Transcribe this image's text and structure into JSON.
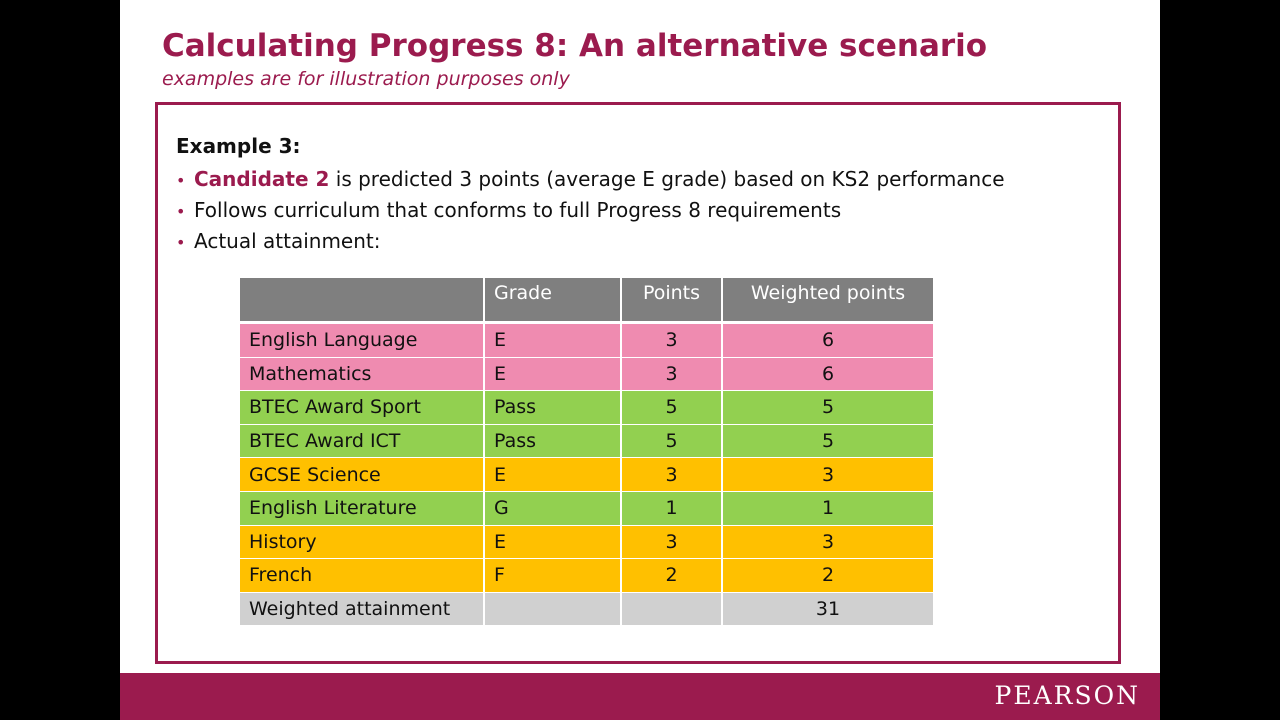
{
  "title": "Calculating Progress 8: An alternative scenario",
  "subtitle": "examples are for illustration purposes only",
  "example_heading": "Example 3:",
  "bullets": [
    {
      "bold": "Candidate 2",
      "text": " is predicted 3 points (average E grade) based on KS2 performance"
    },
    {
      "bold": "",
      "text": "Follows curriculum that conforms to full Progress 8 requirements"
    },
    {
      "bold": "",
      "text": "Actual attainment:"
    }
  ],
  "bullet_symbol": "•",
  "table": {
    "headers": [
      "",
      "Grade",
      "Points",
      "Weighted points"
    ],
    "rows": [
      {
        "subject": "English Language",
        "grade": "E",
        "points": "3",
        "weighted": "6",
        "color": "#ef8bb0"
      },
      {
        "subject": "Mathematics",
        "grade": "E",
        "points": "3",
        "weighted": "6",
        "color": "#ef8bb0"
      },
      {
        "subject": "BTEC Award Sport",
        "grade": "Pass",
        "points": "5",
        "weighted": "5",
        "color": "#92d050"
      },
      {
        "subject": "BTEC Award ICT",
        "grade": "Pass",
        "points": "5",
        "weighted": "5",
        "color": "#92d050"
      },
      {
        "subject": "GCSE Science",
        "grade": "E",
        "points": "3",
        "weighted": "3",
        "color": "#ffc000"
      },
      {
        "subject": "English Literature",
        "grade": "G",
        "points": "1",
        "weighted": "1",
        "color": "#92d050"
      },
      {
        "subject": "History",
        "grade": "E",
        "points": "3",
        "weighted": "3",
        "color": "#ffc000"
      },
      {
        "subject": "French",
        "grade": "F",
        "points": "2",
        "weighted": "2",
        "color": "#ffc000"
      }
    ],
    "total": {
      "label": "Weighted attainment",
      "grade": "",
      "points": "",
      "weighted": "31",
      "color": "#d0d0d0"
    }
  },
  "footer": {
    "logo": "PEARSON",
    "color": "#9b1b4e"
  },
  "colors": {
    "accent": "#9b1b4e",
    "header_grey": "#7f7f7f"
  }
}
